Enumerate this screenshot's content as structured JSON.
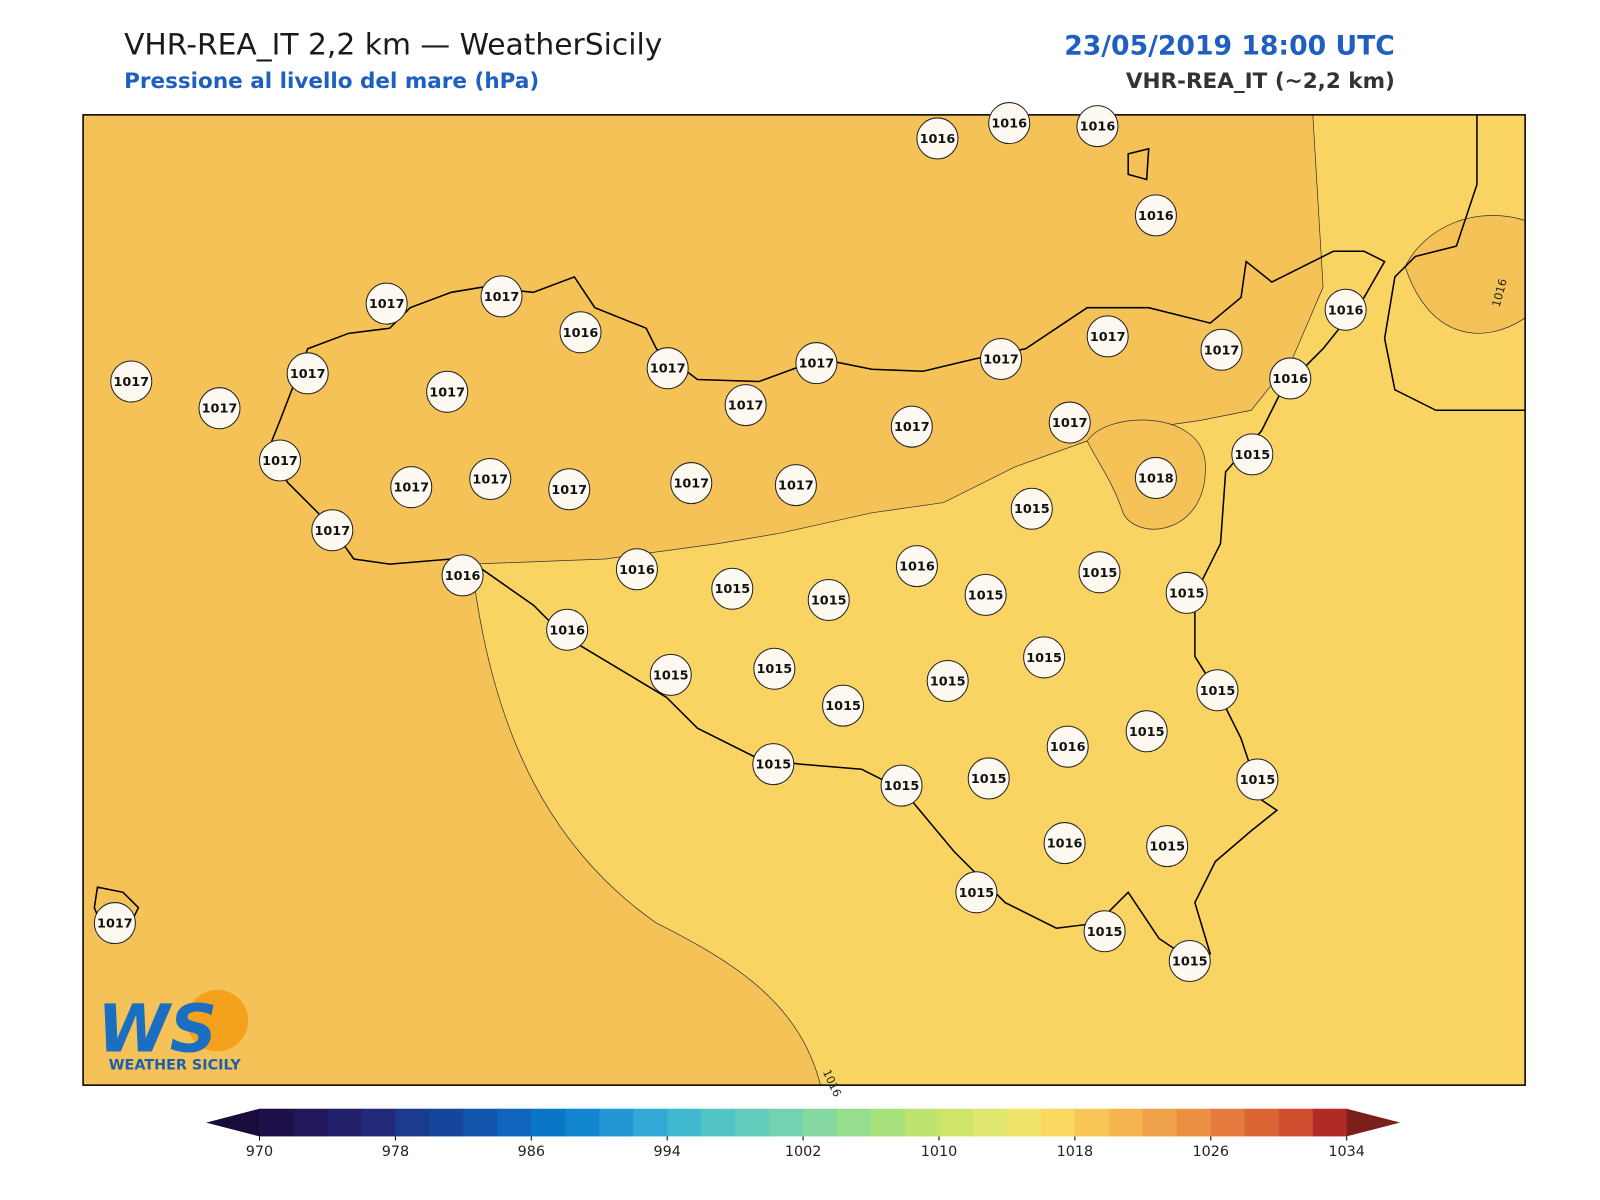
{
  "header": {
    "title": "VHR-REA_IT 2,2 km — WeatherSicily",
    "subtitle": "Pressione al livello del mare (hPa)",
    "datetime": "23/05/2019 18:00 UTC",
    "model": "VHR-REA_IT (~2,2 km)"
  },
  "stations": [
    1016,
    1016,
    1016,
    1016,
    1016,
    1017,
    1017,
    1016,
    1017,
    1017,
    1017,
    1017,
    1017,
    1017,
    1017,
    1017,
    1017,
    1017,
    1016,
    1017,
    1017,
    1015,
    1017,
    1017,
    1017,
    1017,
    1017,
    1017,
    1018,
    1015,
    1017,
    1016,
    1016,
    1015,
    1015,
    1016,
    1015,
    1015,
    1015,
    1016,
    1015,
    1015,
    1015,
    1015,
    1015,
    1015,
    1015,
    1016,
    1015,
    1015,
    1015,
    1015,
    1016,
    1015,
    1015,
    1015,
    1015,
    1017
  ],
  "contour_labels": [
    "1016",
    "1016"
  ],
  "logo": {
    "mark": "WS",
    "text": "WEATHER SICILY"
  },
  "colorbar": {
    "lim": [
      970,
      1034
    ],
    "ticks": [
      970,
      978,
      986,
      994,
      1002,
      1010,
      1018,
      1026,
      1034
    ],
    "colors": [
      "#1e1048",
      "#22175a",
      "#23206b",
      "#232a7a",
      "#1c3a8e",
      "#15469e",
      "#1255ad",
      "#0f65bb",
      "#0c76c6",
      "#1185cd",
      "#2296d2",
      "#32a8d4",
      "#40b8d0",
      "#52c4c6",
      "#64ccbc",
      "#74d2b0",
      "#84d8a0",
      "#96dd8e",
      "#a8e27c",
      "#bce46e",
      "#cee56a",
      "#dfe76e",
      "#f0e46c",
      "#fbd860",
      "#f8c657",
      "#f4b450",
      "#efa24a",
      "#eb8f43",
      "#e47a3b",
      "#db6535",
      "#cf4f30",
      "#b02a28"
    ],
    "under": "#1a0c3a",
    "over": "#7a1f1a"
  }
}
